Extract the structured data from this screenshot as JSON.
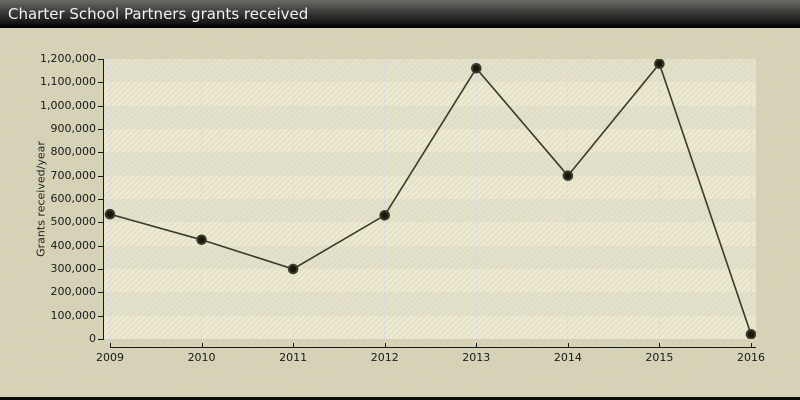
{
  "window": {
    "title": "Charter School Partners grants received"
  },
  "chart_data": {
    "type": "line",
    "title": "Charter School Partners grants received",
    "xlabel": "",
    "ylabel": "Grants received/year",
    "categories": [
      "2009",
      "2010",
      "2011",
      "2012",
      "2013",
      "2014",
      "2015",
      "2016"
    ],
    "values": [
      535000,
      425000,
      300000,
      530000,
      1160000,
      700000,
      1180000,
      20000
    ],
    "series_name": "Grants received/year",
    "ylim": [
      0,
      1200000
    ],
    "ytick_step": 100000,
    "y_tick_labels": [
      "0",
      "100,000",
      "200,000",
      "300,000",
      "400,000",
      "500,000",
      "600,000",
      "700,000",
      "800,000",
      "900,000",
      "1,000,000",
      "1,100,000",
      "1,200,000"
    ],
    "grid": "vertical-dashed",
    "legend_position": "none",
    "marker": "filled-circle"
  },
  "colors": {
    "titlebar_text": "#f2f2f2",
    "bg_stripe_a": "#d9d4ab",
    "bg_stripe_b": "#d2d1c1",
    "band_dark": "#e2e1d3",
    "band_light": "#ecead9",
    "gridline": "#d8d8ea",
    "axis": "#1a1a1a",
    "line": "#3b392a",
    "marker_fill": "#1a180c",
    "marker_ring": "#3b392a"
  }
}
